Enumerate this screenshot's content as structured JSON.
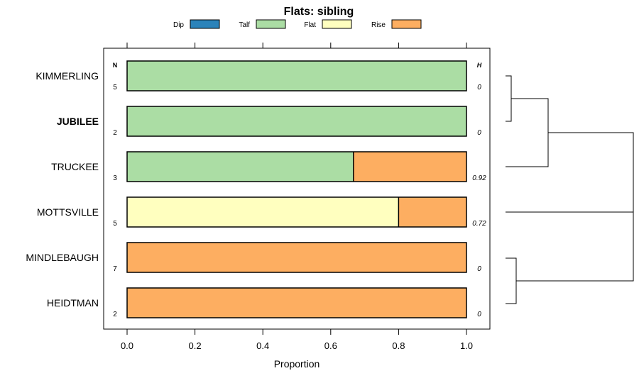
{
  "chart_data": {
    "type": "bar",
    "orientation": "horizontal-stacked",
    "title": "Flats: sibling",
    "xlabel": "Proportion",
    "ylabel": "",
    "xlim": [
      0.0,
      1.0
    ],
    "xticks": [
      "0.0",
      "0.2",
      "0.4",
      "0.6",
      "0.8",
      "1.0"
    ],
    "legend": [
      {
        "name": "Dip",
        "color": "#2b83ba"
      },
      {
        "name": "Talf",
        "color": "#abdda4"
      },
      {
        "name": "Flat",
        "color": "#ffffbf"
      },
      {
        "name": "Rise",
        "color": "#fdae61"
      }
    ],
    "n_header": "N",
    "h_header": "H",
    "categories": [
      "KIMMERLING",
      "JUBILEE",
      "TRUCKEE",
      "MOTTSVILLE",
      "MINDLEBAUGH",
      "HEIDTMAN"
    ],
    "bold_categories": [
      "JUBILEE"
    ],
    "n": [
      "5",
      "2",
      "3",
      "5",
      "7",
      "2"
    ],
    "h": [
      "0",
      "0",
      "0.92",
      "0.72",
      "0",
      "0"
    ],
    "series": [
      {
        "name": "Dip",
        "values": [
          0,
          0,
          0,
          0,
          0,
          0
        ]
      },
      {
        "name": "Talf",
        "values": [
          1.0,
          1.0,
          0.667,
          0,
          0,
          0
        ]
      },
      {
        "name": "Flat",
        "values": [
          0,
          0,
          0,
          0.8,
          0,
          0
        ]
      },
      {
        "name": "Rise",
        "values": [
          0,
          0,
          0.333,
          0.2,
          1.0,
          1.0
        ]
      }
    ],
    "dendrogram": "hierarchical clustering tree joining KIMMERLING with JUBILEE, then TRUCKEE; MINDLEBAUGH with HEIDTMAN; all joined with MOTTSVILLE"
  }
}
